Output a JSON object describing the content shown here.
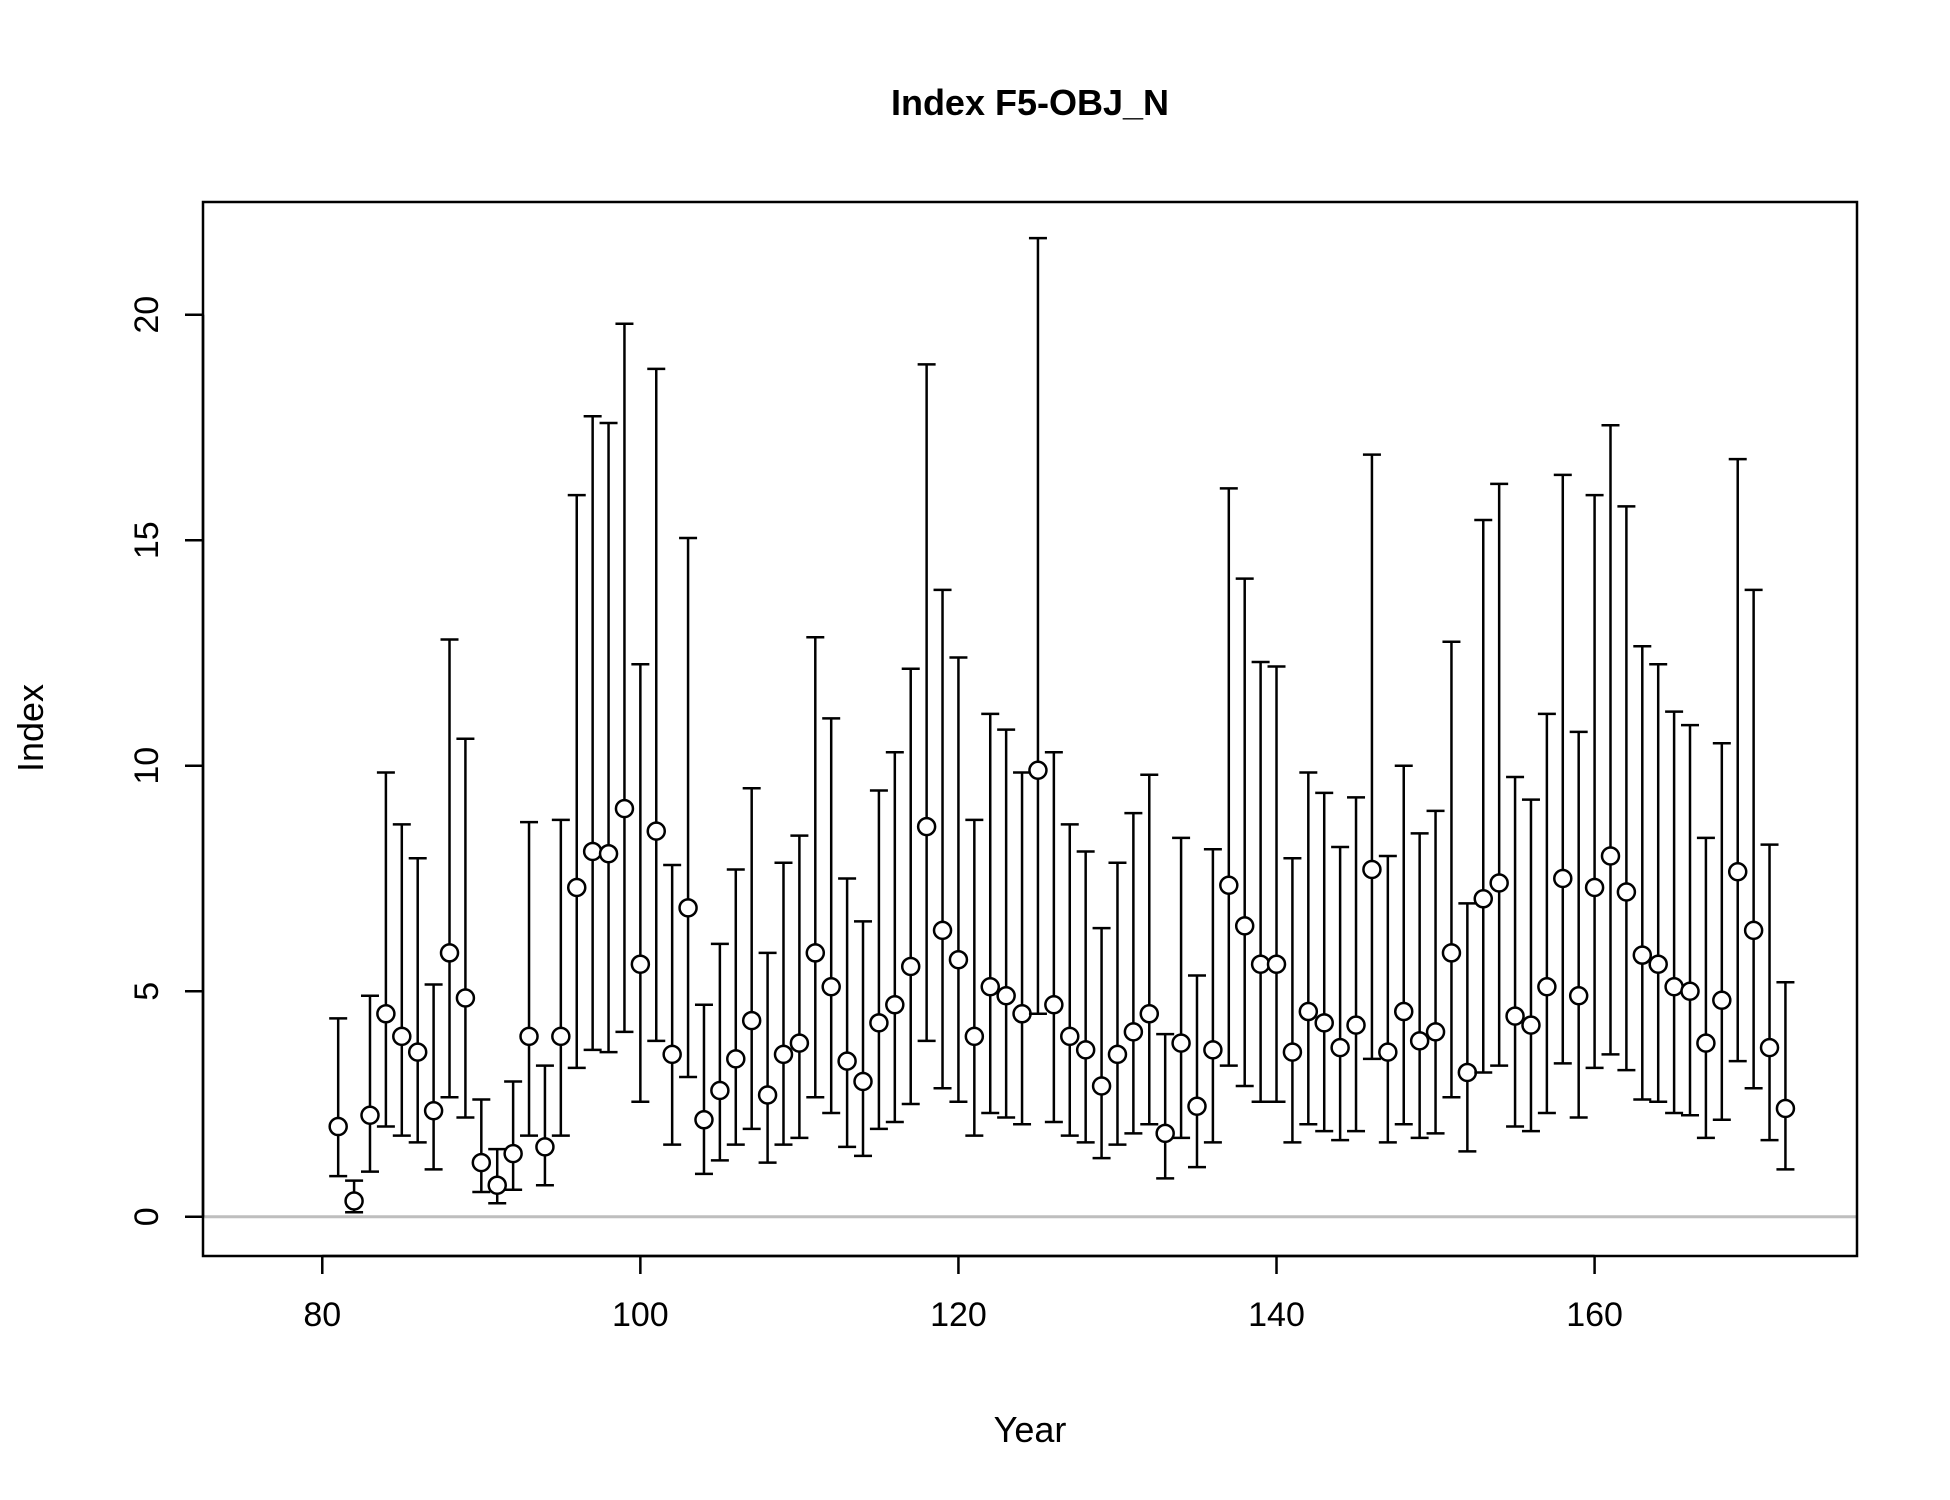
{
  "chart_data": {
    "type": "scatter",
    "title": "Index F5-OBJ_N",
    "xlabel": "Year",
    "ylabel": "Index",
    "xlim": [
      72.5,
      176.5
    ],
    "ylim": [
      -0.87,
      22.5
    ],
    "xticks": [
      80,
      100,
      120,
      140,
      160
    ],
    "yticks": [
      0,
      5,
      10,
      15,
      20
    ],
    "reference_line": {
      "y": 0,
      "color": "#bebebe"
    },
    "grid": false,
    "legend": "none",
    "colors": {
      "points_fill": "#ffffff",
      "points_stroke": "#000000",
      "error_bars": "#000000"
    },
    "series": [
      {
        "x": [
          81,
          82,
          83,
          84,
          85,
          86,
          87,
          88,
          89,
          90,
          91,
          92,
          93,
          94,
          95,
          96,
          97,
          98,
          99,
          100,
          101,
          102,
          103,
          104,
          105,
          106,
          107,
          108,
          109,
          110,
          111,
          112,
          113,
          114,
          115,
          116,
          117,
          118,
          119,
          120,
          121,
          122,
          123,
          124,
          125,
          126,
          127,
          128,
          129,
          130,
          131,
          132,
          133,
          134,
          135,
          136,
          137,
          138,
          139,
          140,
          141,
          142,
          143,
          144,
          145,
          146,
          147,
          148,
          149,
          150,
          151,
          152,
          153,
          154,
          155,
          156,
          157,
          158,
          159,
          160,
          161,
          162,
          163,
          164,
          165,
          166,
          167,
          168,
          169,
          170,
          171,
          172
        ],
        "y": [
          2.0,
          0.35,
          2.25,
          4.5,
          4.0,
          3.65,
          2.35,
          5.85,
          4.85,
          1.2,
          0.7,
          1.4,
          4.0,
          1.55,
          4.0,
          7.3,
          8.1,
          8.05,
          9.05,
          5.6,
          8.55,
          3.6,
          6.85,
          2.15,
          2.8,
          3.5,
          4.35,
          2.7,
          3.6,
          3.85,
          5.85,
          5.1,
          3.45,
          3.0,
          4.3,
          4.7,
          5.55,
          8.65,
          6.35,
          5.7,
          4.0,
          5.1,
          4.9,
          4.5,
          9.9,
          4.7,
          4.0,
          3.7,
          2.9,
          3.6,
          4.1,
          4.5,
          1.85,
          3.85,
          2.45,
          3.7,
          7.35,
          6.45,
          5.6,
          5.6,
          3.65,
          4.55,
          4.3,
          3.75,
          4.25,
          7.7,
          3.65,
          4.55,
          3.9,
          4.1,
          5.85,
          3.2,
          7.05,
          7.4,
          4.45,
          4.25,
          5.1,
          7.5,
          4.9,
          7.3,
          8.0,
          7.2,
          5.8,
          5.6,
          5.1,
          5.0,
          3.85,
          4.8,
          7.65,
          6.35,
          3.75,
          2.4
        ],
        "lower": [
          0.9,
          0.1,
          1.0,
          2.0,
          1.8,
          1.65,
          1.05,
          2.65,
          2.2,
          0.55,
          0.3,
          0.6,
          1.8,
          0.7,
          1.8,
          3.3,
          3.7,
          3.65,
          4.1,
          2.55,
          3.9,
          1.6,
          3.1,
          0.95,
          1.25,
          1.6,
          1.95,
          1.2,
          1.6,
          1.75,
          2.65,
          2.3,
          1.55,
          1.35,
          1.95,
          2.1,
          2.5,
          3.9,
          2.85,
          2.55,
          1.8,
          2.3,
          2.2,
          2.05,
          4.5,
          2.1,
          1.8,
          1.65,
          1.3,
          1.6,
          1.85,
          2.05,
          0.85,
          1.75,
          1.1,
          1.65,
          3.35,
          2.9,
          2.55,
          2.55,
          1.65,
          2.05,
          1.9,
          1.7,
          1.9,
          3.5,
          1.65,
          2.05,
          1.75,
          1.85,
          2.65,
          1.45,
          3.2,
          3.35,
          2.0,
          1.9,
          2.3,
          3.4,
          2.2,
          3.3,
          3.6,
          3.25,
          2.6,
          2.55,
          2.3,
          2.25,
          1.75,
          2.15,
          3.45,
          2.85,
          1.7,
          1.05
        ],
        "upper": [
          4.4,
          0.8,
          4.9,
          9.85,
          8.7,
          7.95,
          5.15,
          12.8,
          10.6,
          2.6,
          1.5,
          3.0,
          8.75,
          3.35,
          8.8,
          16.0,
          17.75,
          17.6,
          19.8,
          12.25,
          18.8,
          7.8,
          15.05,
          4.7,
          6.05,
          7.7,
          9.5,
          5.85,
          7.85,
          8.45,
          12.85,
          11.05,
          7.5,
          6.55,
          9.45,
          10.3,
          12.15,
          18.9,
          13.9,
          12.4,
          8.8,
          11.15,
          10.8,
          9.85,
          21.7,
          10.3,
          8.7,
          8.1,
          6.4,
          7.85,
          8.95,
          9.8,
          4.05,
          8.4,
          5.35,
          8.15,
          16.15,
          14.15,
          12.3,
          12.2,
          7.95,
          9.85,
          9.4,
          8.2,
          9.3,
          16.9,
          8.0,
          10.0,
          8.5,
          9.0,
          12.75,
          6.95,
          15.45,
          16.25,
          9.75,
          9.25,
          11.15,
          16.45,
          10.75,
          16.0,
          17.55,
          15.75,
          12.65,
          12.25,
          11.2,
          10.9,
          8.4,
          10.5,
          16.8,
          13.9,
          8.25,
          5.2
        ]
      }
    ]
  }
}
